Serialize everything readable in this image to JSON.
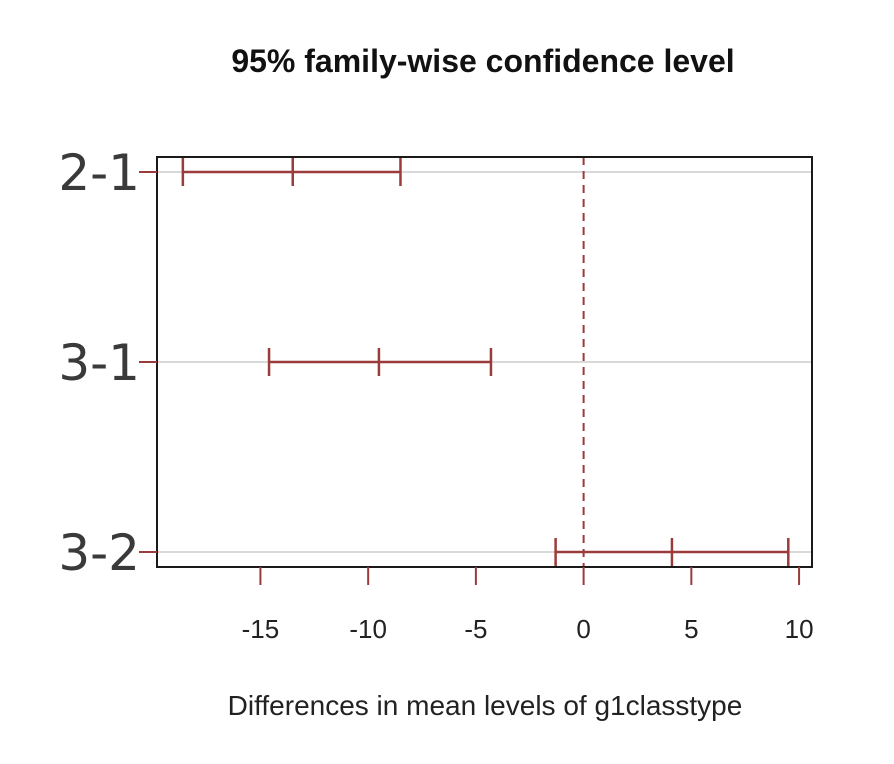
{
  "chart_data": {
    "type": "errorbar",
    "title": "95% family-wise confidence level",
    "xlabel": "Differences in mean levels of g1classtype",
    "ylabel": "",
    "xlim": [
      -19.8,
      10.6
    ],
    "xticks": [
      -15,
      -10,
      -5,
      0,
      5,
      10
    ],
    "xtick_labels": [
      "-15",
      "-10",
      "-5",
      "0",
      "5",
      "10"
    ],
    "reference_line": 0,
    "grid": "horizontal",
    "colors": {
      "interval": "#9b3b3b",
      "reference": "#9b3b3b",
      "grid": "#d9d9d9",
      "axis": "#1a1a1a"
    },
    "comparisons": [
      {
        "label": "2-1",
        "lwr": -18.6,
        "diff": -13.5,
        "upr": -8.5
      },
      {
        "label": "3-1",
        "lwr": -14.6,
        "diff": -9.5,
        "upr": -4.3
      },
      {
        "label": "3-2",
        "lwr": -1.3,
        "diff": 4.1,
        "upr": 9.5
      }
    ]
  }
}
